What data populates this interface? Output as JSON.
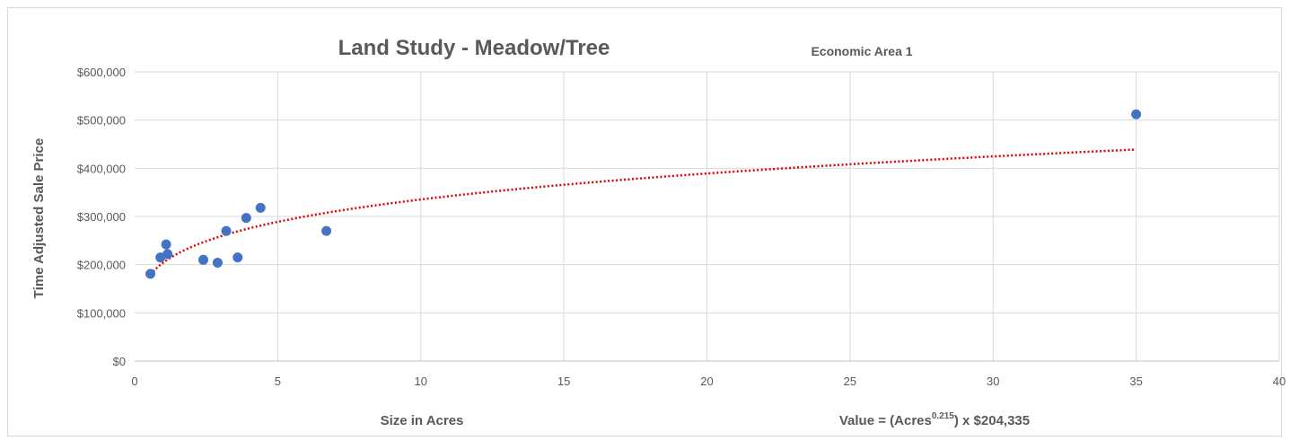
{
  "chart_data": {
    "type": "scatter",
    "title": "Land Study - Meadow/Tree",
    "subtitle": "Economic Area 1",
    "xlabel": "Size in Acres",
    "ylabel": "Time Adjusted Sale Price",
    "xlim": [
      0,
      40
    ],
    "ylim": [
      0,
      600000
    ],
    "x_ticks": [
      0,
      5,
      10,
      15,
      20,
      25,
      30,
      35,
      40
    ],
    "x_tick_labels": [
      "0",
      "5",
      "10",
      "15",
      "20",
      "25",
      "30",
      "35",
      "40"
    ],
    "y_ticks": [
      0,
      100000,
      200000,
      300000,
      400000,
      500000,
      600000
    ],
    "y_tick_labels": [
      "$0",
      "$100,000",
      "$200,000",
      "$300,000",
      "$400,000",
      "$500,000",
      "$600,000"
    ],
    "grid": true,
    "point_color": "#4472c4",
    "trend_color": "#e00000",
    "points": [
      {
        "x": 0.55,
        "y": 181000
      },
      {
        "x": 0.9,
        "y": 215000
      },
      {
        "x": 1.1,
        "y": 242000
      },
      {
        "x": 1.15,
        "y": 222000
      },
      {
        "x": 2.4,
        "y": 210000
      },
      {
        "x": 2.9,
        "y": 204000
      },
      {
        "x": 3.2,
        "y": 270000
      },
      {
        "x": 3.6,
        "y": 215000
      },
      {
        "x": 3.9,
        "y": 297000
      },
      {
        "x": 4.4,
        "y": 318000
      },
      {
        "x": 6.7,
        "y": 270000
      },
      {
        "x": 35.0,
        "y": 512000
      }
    ],
    "trendline": {
      "type": "power",
      "coefficient": 204335,
      "exponent": 0.215,
      "x_range": [
        0.55,
        35
      ]
    },
    "equation": {
      "prefix": "Value = (Acres",
      "exponent_text": "0.215",
      "suffix": ") x $204,335"
    }
  }
}
